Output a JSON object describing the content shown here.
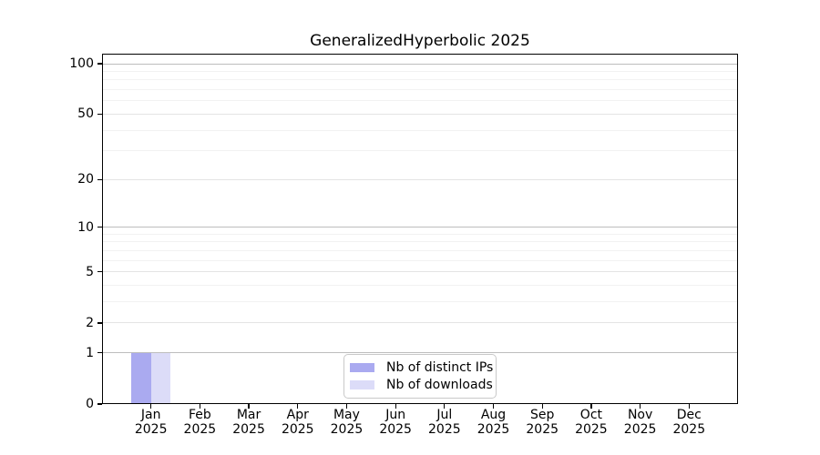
{
  "chart_data": {
    "type": "bar",
    "title": "GeneralizedHyperbolic 2025",
    "year": "2025",
    "categories": [
      "Jan",
      "Feb",
      "Mar",
      "Apr",
      "May",
      "Jun",
      "Jul",
      "Aug",
      "Sep",
      "Oct",
      "Nov",
      "Dec"
    ],
    "series": [
      {
        "name": "Nb of distinct IPs",
        "color": "#aaaaf0",
        "values": [
          1,
          0,
          0,
          0,
          0,
          0,
          0,
          0,
          0,
          0,
          0,
          0
        ]
      },
      {
        "name": "Nb of downloads",
        "color": "#dcdcf8",
        "values": [
          1,
          0,
          0,
          0,
          0,
          0,
          0,
          0,
          0,
          0,
          0,
          0
        ]
      }
    ],
    "yticks": [
      100,
      50,
      20,
      10,
      5,
      2,
      1,
      0
    ],
    "ylim": [
      0,
      115
    ],
    "scale": "log10(1+v)",
    "grid": "on",
    "gridlines": {
      "major": [
        1,
        10,
        100
      ],
      "mid": [
        2,
        5,
        20,
        50
      ],
      "minor": [
        3,
        4,
        6,
        7,
        8,
        9,
        30,
        40,
        60,
        70,
        80,
        90
      ]
    },
    "grid_colors": {
      "major": "#bdbdbd",
      "mid": "#e4e4e4",
      "minor": "#f2f2f2"
    },
    "axis_color": "#000000",
    "background": "#ffffff",
    "legend_position": "bottom-center-inside"
  }
}
